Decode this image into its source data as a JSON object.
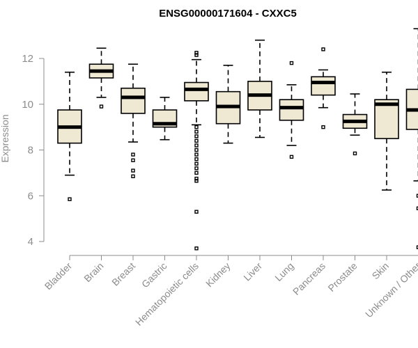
{
  "chart_data": {
    "type": "boxplot",
    "title": "ENSG00000171604 - CXXC5",
    "xlabel": "",
    "ylabel": "Expression",
    "ylim": [
      3.5,
      13.5
    ],
    "yticks": [
      4,
      6,
      8,
      10,
      12
    ],
    "colors": {
      "box_fill": "#efe8d2",
      "box_stroke": "#000000",
      "axis": "#8c8c8c"
    },
    "categories": [
      "Bladder",
      "Brain",
      "Breast",
      "Gastric",
      "Hematopoietic cells",
      "Kidney",
      "Liver",
      "Lung",
      "Pancreas",
      "Prostate",
      "Skin",
      "Unknown / Other"
    ],
    "boxes": [
      {
        "name": "Bladder",
        "whisker_low": 6.9,
        "q1": 8.3,
        "median": 9.0,
        "q3": 9.75,
        "whisker_high": 11.4,
        "outliers": [
          5.85
        ]
      },
      {
        "name": "Brain",
        "whisker_low": 10.3,
        "q1": 11.15,
        "median": 11.45,
        "q3": 11.75,
        "whisker_high": 12.45,
        "outliers": [
          9.9
        ]
      },
      {
        "name": "Breast",
        "whisker_low": 8.35,
        "q1": 9.6,
        "median": 10.3,
        "q3": 10.7,
        "whisker_high": 11.75,
        "outliers": [
          7.8,
          7.55,
          7.1,
          6.85
        ]
      },
      {
        "name": "Gastric",
        "whisker_low": 8.45,
        "q1": 9.0,
        "median": 9.15,
        "q3": 9.75,
        "whisker_high": 10.3,
        "outliers": []
      },
      {
        "name": "Hematopoietic cells",
        "whisker_low": 9.1,
        "q1": 10.15,
        "median": 10.65,
        "q3": 10.95,
        "whisker_high": 11.95,
        "outliers": [
          12.25,
          12.15,
          9.0,
          8.8,
          8.6,
          8.4,
          8.2,
          8.0,
          7.8,
          7.6,
          7.4,
          7.2,
          7.0,
          6.75,
          6.65,
          5.3,
          3.7
        ]
      },
      {
        "name": "Kidney",
        "whisker_low": 8.3,
        "q1": 9.15,
        "median": 9.9,
        "q3": 10.55,
        "whisker_high": 11.7,
        "outliers": []
      },
      {
        "name": "Liver",
        "whisker_low": 8.55,
        "q1": 9.75,
        "median": 10.4,
        "q3": 11.0,
        "whisker_high": 12.8,
        "outliers": []
      },
      {
        "name": "Lung",
        "whisker_low": 8.2,
        "q1": 9.3,
        "median": 9.85,
        "q3": 10.2,
        "whisker_high": 10.85,
        "outliers": [
          11.8,
          7.7
        ]
      },
      {
        "name": "Pancreas",
        "whisker_low": 9.85,
        "q1": 10.4,
        "median": 10.95,
        "q3": 11.2,
        "whisker_high": 11.5,
        "outliers": [
          12.4,
          9.0
        ]
      },
      {
        "name": "Prostate",
        "whisker_low": 8.65,
        "q1": 8.95,
        "median": 9.25,
        "q3": 9.55,
        "whisker_high": 10.45,
        "outliers": [
          7.85
        ]
      },
      {
        "name": "Skin",
        "whisker_low": 6.25,
        "q1": 8.5,
        "median": 10.0,
        "q3": 10.2,
        "whisker_high": 11.4,
        "outliers": []
      },
      {
        "name": "Unknown / Other",
        "whisker_low": 6.65,
        "q1": 8.9,
        "median": 9.75,
        "q3": 10.65,
        "whisker_high": 13.3,
        "outliers": [
          6.0,
          5.45,
          3.75
        ]
      }
    ]
  }
}
